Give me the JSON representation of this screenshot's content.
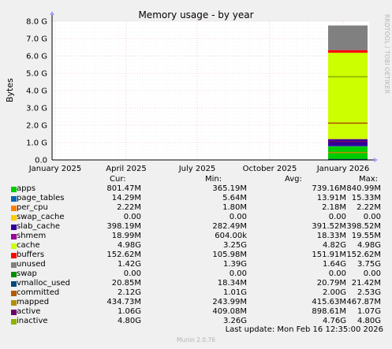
{
  "title": "Memory usage - by year",
  "side_credit": "RRDTOOL / TOBI OETIKER",
  "footer": "Munin 2.0.76",
  "last_update": "Last update: Mon Feb 16 12:35:00 2026",
  "legend_headers": {
    "cur": "Cur:",
    "min": "Min:",
    "avg": "Avg:",
    "max": "Max:"
  },
  "chart_data": {
    "type": "area",
    "title": "Memory usage - by year",
    "ylabel": "Bytes",
    "ylim": [
      0,
      8.0
    ],
    "y_unit": "G",
    "y_ticks": [
      "0.0",
      "1.0 G",
      "2.0 G",
      "3.0 G",
      "4.0 G",
      "5.0 G",
      "6.0 G",
      "7.0 G",
      "8.0 G"
    ],
    "x_ticks": [
      "January 2025",
      "April 2025",
      "July 2025",
      "October 2025",
      "January 2026"
    ],
    "grid": true,
    "series": [
      {
        "name": "apps",
        "color": "#00cc00",
        "cur": "801.47M",
        "min": "365.19M",
        "avg": "739.16M",
        "max": "840.99M"
      },
      {
        "name": "page_tables",
        "color": "#0066b3",
        "cur": "14.29M",
        "min": "5.64M",
        "avg": "13.91M",
        "max": "15.33M"
      },
      {
        "name": "per_cpu",
        "color": "#ff8000",
        "cur": "2.22M",
        "min": "1.80M",
        "avg": "2.18M",
        "max": "2.22M"
      },
      {
        "name": "swap_cache",
        "color": "#ffcc00",
        "cur": "0.00",
        "min": "0.00",
        "avg": "0.00",
        "max": "0.00"
      },
      {
        "name": "slab_cache",
        "color": "#330099",
        "cur": "398.19M",
        "min": "282.49M",
        "avg": "391.52M",
        "max": "398.52M"
      },
      {
        "name": "shmem",
        "color": "#990099",
        "cur": "18.99M",
        "min": "604.00k",
        "avg": "18.33M",
        "max": "19.55M"
      },
      {
        "name": "cache",
        "color": "#ccff00",
        "cur": "4.98G",
        "min": "3.25G",
        "avg": "4.82G",
        "max": "4.98G"
      },
      {
        "name": "buffers",
        "color": "#ff0000",
        "cur": "152.62M",
        "min": "105.98M",
        "avg": "151.91M",
        "max": "152.62M"
      },
      {
        "name": "unused",
        "color": "#808080",
        "cur": "1.42G",
        "min": "1.39G",
        "avg": "1.64G",
        "max": "3.75G"
      },
      {
        "name": "swap",
        "color": "#008f00",
        "cur": "0.00",
        "min": "0.00",
        "avg": "0.00",
        "max": "0.00"
      },
      {
        "name": "vmalloc_used",
        "color": "#00487d",
        "cur": "20.85M",
        "min": "18.34M",
        "avg": "20.79M",
        "max": "21.42M"
      },
      {
        "name": "committed",
        "color": "#b35a00",
        "cur": "2.12G",
        "min": "1.01G",
        "avg": "2.00G",
        "max": "2.53G"
      },
      {
        "name": "mapped",
        "color": "#b38f00",
        "cur": "434.73M",
        "min": "243.99M",
        "avg": "415.63M",
        "max": "467.87M"
      },
      {
        "name": "active",
        "color": "#6b006b",
        "cur": "1.06G",
        "min": "409.08M",
        "avg": "898.61M",
        "max": "1.07G"
      },
      {
        "name": "inactive",
        "color": "#8fb300",
        "cur": "4.80G",
        "min": "3.26G",
        "avg": "4.76G",
        "max": "4.80G"
      }
    ]
  }
}
